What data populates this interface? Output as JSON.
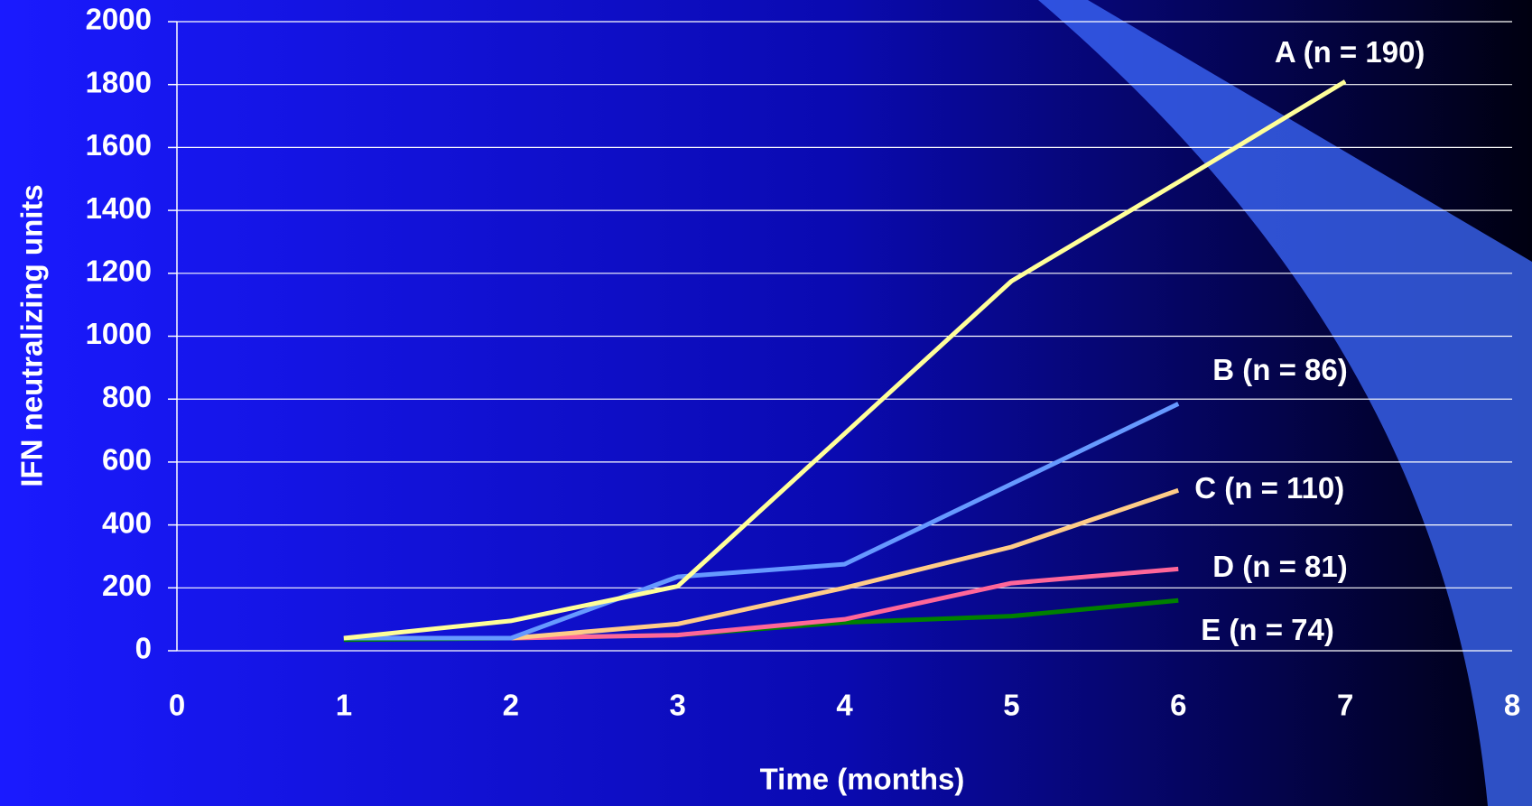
{
  "chart_data": {
    "type": "line",
    "x_label": "Time (months)",
    "y_label": "IFN neutralizing units",
    "xlim": [
      0,
      8
    ],
    "xticks": [
      0,
      1,
      2,
      3,
      4,
      5,
      6,
      7,
      8
    ],
    "ylim": [
      0,
      2000
    ],
    "yticks": [
      0,
      200,
      400,
      600,
      800,
      1000,
      1200,
      1400,
      1600,
      1800,
      2000
    ],
    "grid": true,
    "series": [
      {
        "name": "A (n = 190)",
        "color": "#ffff99",
        "x": [
          1,
          2,
          3,
          4,
          5,
          6,
          7
        ],
        "values": [
          40,
          95,
          205,
          690,
          1175,
          1490,
          1810
        ]
      },
      {
        "name": "B (n = 86)",
        "color": "#6699ff",
        "x": [
          1,
          2,
          3,
          4,
          5,
          6
        ],
        "values": [
          40,
          40,
          235,
          275,
          530,
          785
        ]
      },
      {
        "name": "C (n = 110)",
        "color": "#ffcc88",
        "x": [
          1,
          2,
          3,
          4,
          5,
          6
        ],
        "values": [
          40,
          40,
          85,
          200,
          330,
          510
        ]
      },
      {
        "name": "D (n = 81)",
        "color": "#ff6699",
        "x": [
          1,
          2,
          3,
          4,
          5,
          6
        ],
        "values": [
          40,
          40,
          50,
          100,
          215,
          260
        ]
      },
      {
        "name": "E (n = 74)",
        "color": "#008000",
        "x": [
          1,
          2,
          3,
          4,
          5,
          6
        ],
        "values": [
          35,
          40,
          50,
          90,
          110,
          160
        ]
      }
    ]
  }
}
